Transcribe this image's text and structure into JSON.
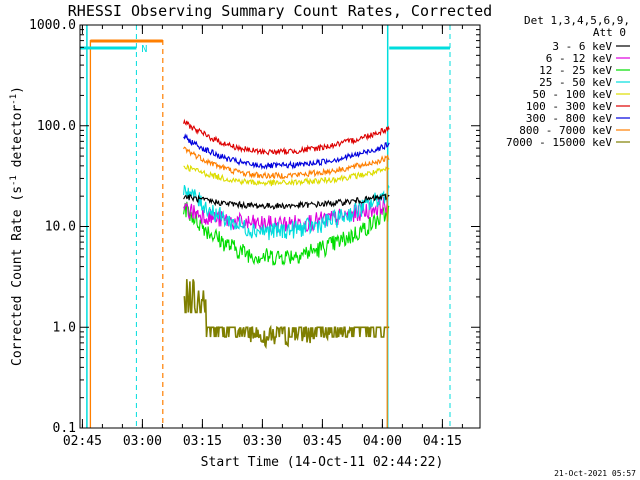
{
  "chart_data": {
    "type": "line",
    "title": "RHESSI Observing Summary Count Rates, Corrected",
    "xlabel": "Start Time (14-Oct-11 02:44:22)",
    "ylabel_main": "Corrected Count Rate (s",
    "ylabel_sup1": "-1",
    "ylabel_mid": " detector",
    "ylabel_sup2": "-1",
    "ylabel_end": ")",
    "y_scale": "log",
    "ylim": [
      0.1,
      1000.0
    ],
    "xlim_minutes": [
      0,
      100
    ],
    "y_ticks": [
      "0.1",
      "1.0",
      "10.0",
      "100.0",
      "1000.0"
    ],
    "x_ticks": [
      {
        "label": "02:45",
        "minute": 0.6
      },
      {
        "label": "03:00",
        "minute": 15.6
      },
      {
        "label": "03:15",
        "minute": 30.6
      },
      {
        "label": "03:30",
        "minute": 45.6
      },
      {
        "label": "03:45",
        "minute": 60.6
      },
      {
        "label": "04:00",
        "minute": 75.6
      },
      {
        "label": "04:15",
        "minute": 90.6
      }
    ],
    "legend_header": [
      "Det 1,3,4,5,6,9,",
      "Att 0"
    ],
    "series": [
      {
        "name": "3 - 6 keV",
        "color": "#000000",
        "start": 20,
        "mid": 16,
        "end": 20
      },
      {
        "name": "6 - 12 keV",
        "color": "#dd00dd",
        "start": 15,
        "mid": 10.5,
        "end": 17
      },
      {
        "name": "12 - 25 keV",
        "color": "#00dd00",
        "start": 16,
        "mid": 5,
        "end": 14
      },
      {
        "name": "25 - 50 keV",
        "color": "#00dddd",
        "start": 25,
        "mid": 9,
        "end": 22
      },
      {
        "name": "50 - 100 keV",
        "color": "#dddd00",
        "start": 40,
        "mid": 27,
        "end": 37
      },
      {
        "name": "100 - 300 keV",
        "color": "#dd0000",
        "start": 110,
        "mid": 55,
        "end": 95
      },
      {
        "name": "300 - 800 keV",
        "color": "#0000dd",
        "start": 78,
        "mid": 40,
        "end": 65
      },
      {
        "name": "800 - 7000 keV",
        "color": "#ff7f00",
        "start": 60,
        "mid": 32,
        "end": 48
      },
      {
        "name": "7000 - 15000 keV",
        "color": "#7f7f00",
        "start": 2.5,
        "mid": 0.8,
        "end": 1.5
      }
    ],
    "flags": [
      {
        "label": "N",
        "color": "#00dddd"
      }
    ],
    "timestamp": "21-Oct-2021 05:57"
  }
}
